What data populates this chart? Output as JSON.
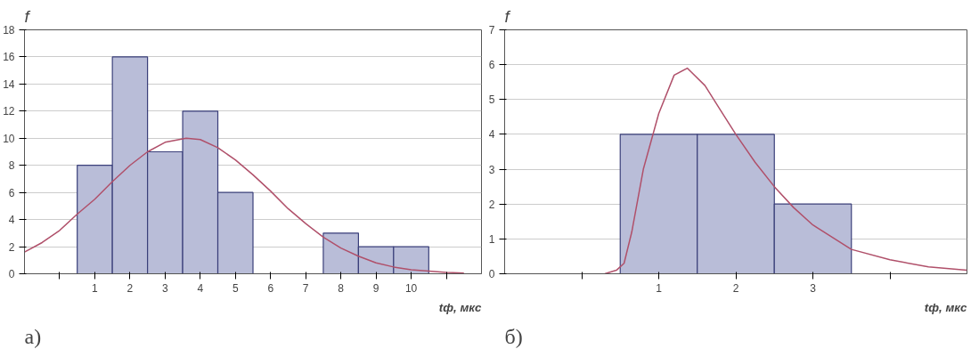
{
  "chart_data": [
    {
      "type": "histogram",
      "ylabel": "f",
      "xlabel": "tф, мкс",
      "annotations": [
        "а)"
      ],
      "xlim": [
        -1,
        12
      ],
      "ylim": [
        0,
        18
      ],
      "xticks": [
        {
          "value": 0,
          "label": null
        },
        1,
        2,
        3,
        4,
        5,
        6,
        7,
        8,
        9,
        10,
        {
          "value": 11,
          "label": null
        }
      ],
      "yticks": [
        0,
        2,
        4,
        6,
        8,
        10,
        12,
        14,
        16,
        18
      ],
      "grid": "y",
      "series": [
        {
          "color": "#b9bdd8",
          "bins": [
            0.5,
            1.5,
            2.5,
            3.5,
            4.5,
            5.5,
            6.5,
            7.5,
            8.5,
            9.5,
            10.5
          ],
          "values": [
            8,
            16,
            9,
            12,
            6,
            0,
            0,
            3,
            2,
            2
          ]
        },
        {
          "type": "line",
          "color": "#b0506a",
          "x": [
            -1,
            -0.5,
            0,
            0.5,
            1,
            1.5,
            2,
            2.5,
            3,
            3.6,
            4,
            4.5,
            5,
            5.5,
            6,
            6.5,
            7,
            7.5,
            8,
            8.5,
            9,
            9.5,
            10,
            10.5,
            11,
            11.5
          ],
          "values": [
            1.6,
            2.3,
            3.2,
            4.4,
            5.5,
            6.8,
            8.0,
            9.0,
            9.7,
            10,
            9.9,
            9.3,
            8.4,
            7.3,
            6.1,
            4.8,
            3.7,
            2.7,
            1.9,
            1.3,
            0.8,
            0.5,
            0.3,
            0.2,
            0.1,
            0.05
          ]
        }
      ]
    },
    {
      "type": "histogram",
      "ylabel": "f",
      "xlabel": "tф, мкс",
      "annotations": [
        "б)"
      ],
      "xlim": [
        -1,
        5
      ],
      "ylim": [
        0,
        7
      ],
      "xticks": [
        {
          "value": 0,
          "label": null
        },
        1,
        2,
        3,
        {
          "value": 4,
          "label": null
        }
      ],
      "yticks": [
        0,
        1,
        2,
        3,
        4,
        5,
        6,
        7
      ],
      "grid": "y",
      "series": [
        {
          "color": "#b9bdd8",
          "bins": [
            0.5,
            1.5,
            2.5,
            3.5
          ],
          "values": [
            4,
            4,
            2
          ]
        },
        {
          "type": "line",
          "color": "#b0506a",
          "x": [
            0.3,
            0.45,
            0.55,
            0.65,
            0.8,
            1.0,
            1.2,
            1.37,
            1.6,
            1.8,
            2.0,
            2.25,
            2.5,
            2.75,
            3.0,
            3.5,
            4.0,
            4.5,
            5.0
          ],
          "values": [
            0,
            0.1,
            0.3,
            1.2,
            3.0,
            4.6,
            5.7,
            5.9,
            5.4,
            4.7,
            4.0,
            3.2,
            2.5,
            1.9,
            1.4,
            0.7,
            0.4,
            0.2,
            0.1
          ]
        }
      ]
    }
  ]
}
